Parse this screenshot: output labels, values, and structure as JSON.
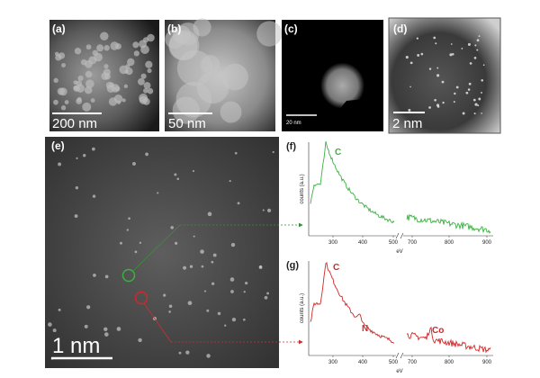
{
  "panels": {
    "a": {
      "label": "(a)",
      "scale": "200 nm"
    },
    "b": {
      "label": "(b)",
      "scale": "50 nm"
    },
    "c": {
      "label": "(c)",
      "scale": "20 nm"
    },
    "d": {
      "label": "(d)",
      "scale": "2 nm"
    },
    "e": {
      "label": "(e)",
      "scale": "1 nm"
    }
  },
  "spectra": [
    {
      "label": "(f)",
      "y_label": "counts (a.u.)",
      "x_label": "eV",
      "xticks": [
        "300",
        "400",
        "500",
        "700",
        "800",
        "900"
      ],
      "annotations": [
        "C"
      ]
    },
    {
      "label": "(g)",
      "y_label": "counts (a.u.)",
      "x_label": "eV",
      "xticks": [
        "300",
        "400",
        "500",
        "700",
        "800",
        "900"
      ],
      "annotations": [
        "C",
        "N",
        "Co"
      ]
    }
  ]
}
